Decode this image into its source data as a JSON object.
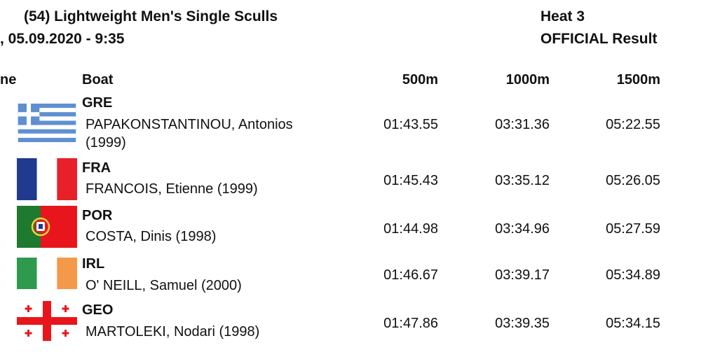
{
  "header": {
    "event": "(54) Lightweight Men's Single Sculls",
    "date": ", 05.09.2020 - 9:35",
    "heat": "Heat 3",
    "status": "OFFICIAL Result"
  },
  "columns": {
    "lane_partial": "ne",
    "boat": "Boat",
    "split1": "500m",
    "split2": "1000m",
    "split3": "1500m"
  },
  "rows": [
    {
      "code": "GRE",
      "name_line1": "PAPAKONSTANTINOU, Antonios",
      "name_line2": "(1999)",
      "t500": "01:43.55",
      "t1000": "03:31.36",
      "t1500": "05:22.55",
      "flag": "greece-flag-icon"
    },
    {
      "code": "FRA",
      "name_line1": "FRANCOIS, Etienne (1999)",
      "t500": "01:45.43",
      "t1000": "03:35.12",
      "t1500": "05:26.05",
      "flag": "france-flag-icon"
    },
    {
      "code": "POR",
      "name_line1": "COSTA, Dinis (1998)",
      "t500": "01:44.98",
      "t1000": "03:34.96",
      "t1500": "05:27.59",
      "flag": "portugal-flag-icon"
    },
    {
      "code": "IRL",
      "name_line1": "O' NEILL, Samuel (2000)",
      "t500": "01:46.67",
      "t1000": "03:39.17",
      "t1500": "05:34.89",
      "flag": "ireland-flag-icon"
    },
    {
      "code": "GEO",
      "name_line1": "MARTOLEKI, Nodari (1998)",
      "t500": "01:47.86",
      "t1000": "03:39.35",
      "t1500": "05:34.15",
      "flag": "georgia-flag-icon"
    }
  ],
  "colors": {
    "text": "#111111",
    "greece_blue": "#5E8FD0",
    "france_blue": "#1F3A8F",
    "france_red": "#E8202A",
    "portugal_green": "#1E7A2E",
    "portugal_red": "#E8161C",
    "ireland_green": "#2E9A4E",
    "ireland_orange": "#F4984A",
    "georgia_red": "#E8161C"
  }
}
